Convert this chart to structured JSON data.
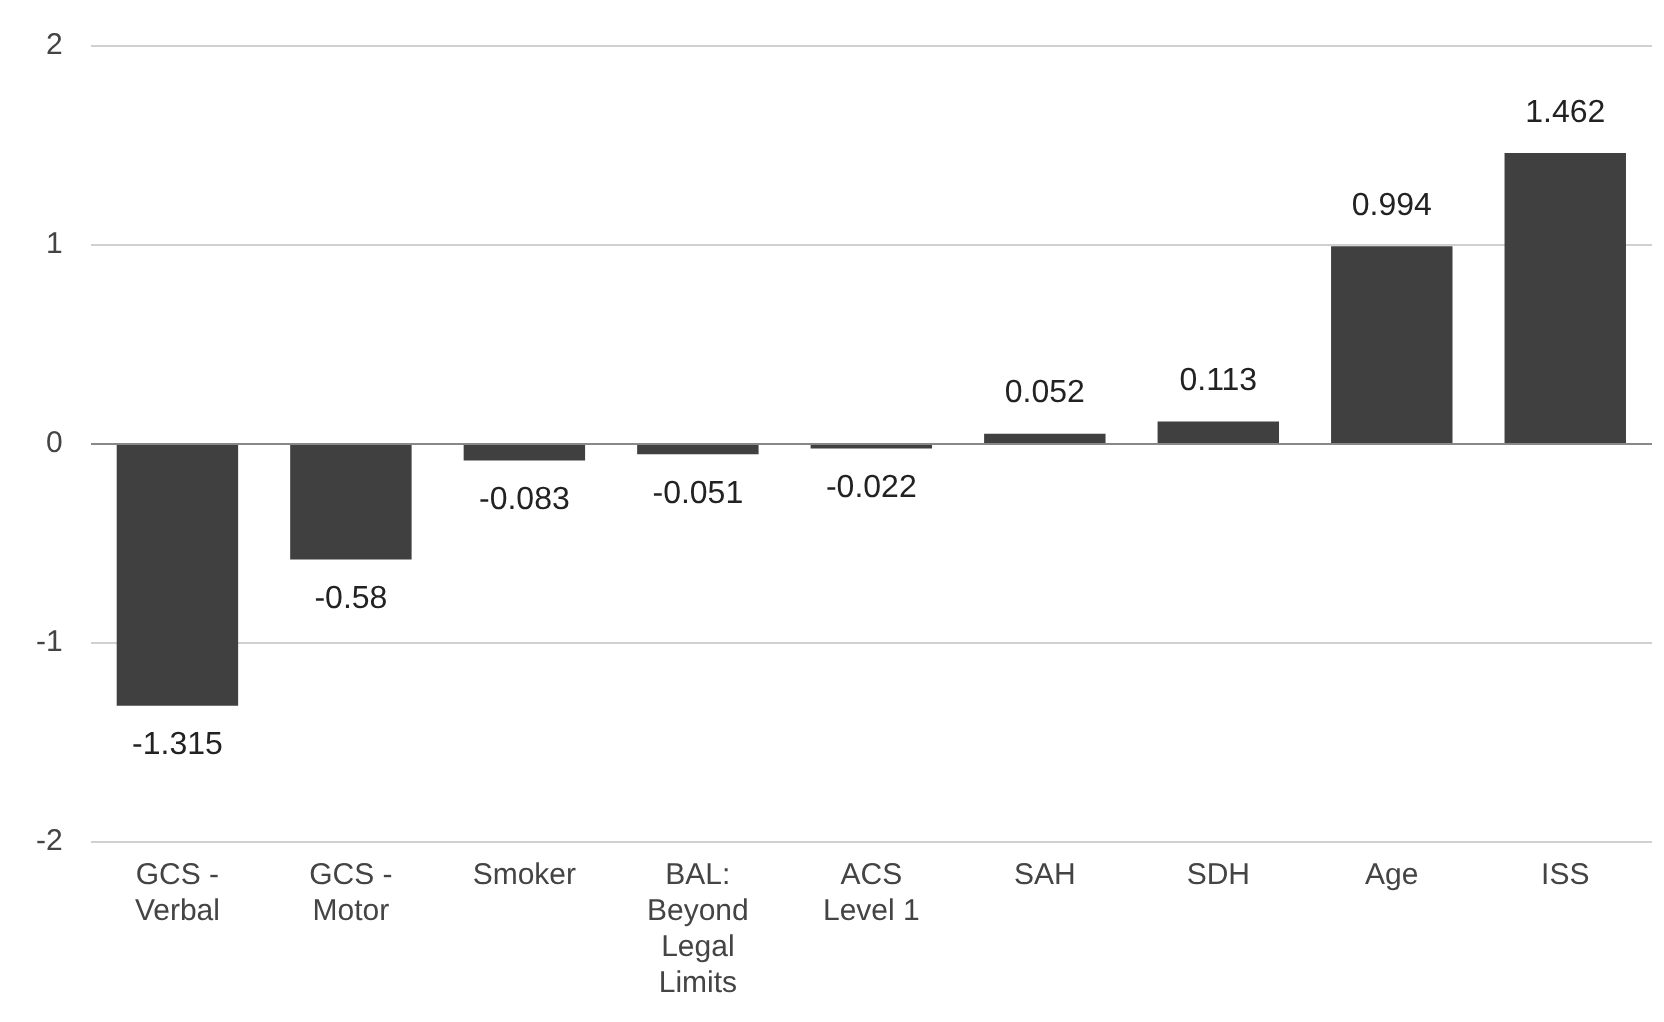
{
  "chart_data": {
    "type": "bar",
    "categories": [
      "GCS - Verbal",
      "GCS - Motor",
      "Smoker",
      "BAL: Beyond Legal Limits",
      "ACS Level 1",
      "SAH",
      "SDH",
      "Age",
      "ISS"
    ],
    "values": [
      -1.315,
      -0.58,
      -0.083,
      -0.051,
      -0.022,
      0.052,
      0.113,
      0.994,
      1.462
    ],
    "color": "#404040",
    "ylim": [
      -2,
      2
    ],
    "yticks": [
      -2,
      -1,
      0,
      1,
      2
    ],
    "grid": "y",
    "data_labels": true
  }
}
